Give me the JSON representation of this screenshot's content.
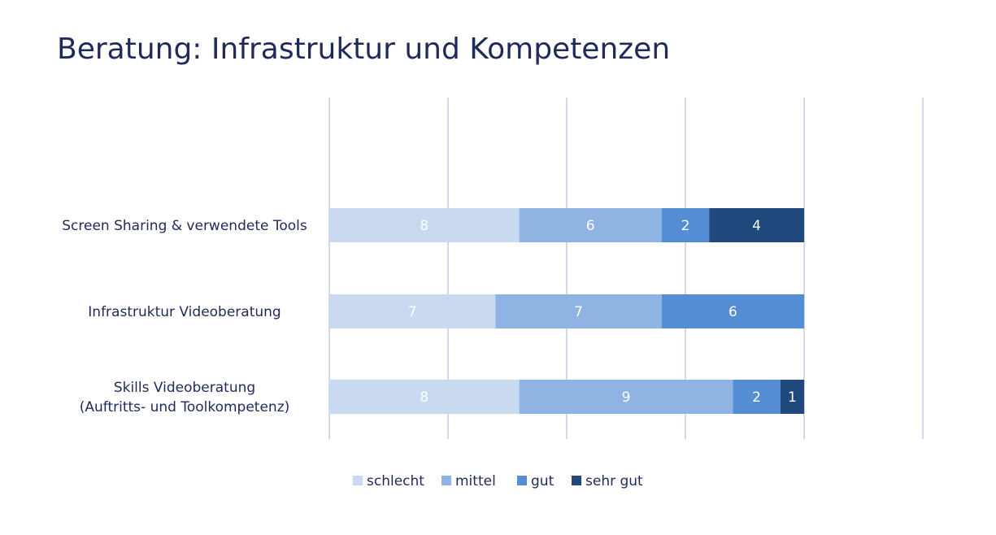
{
  "title": "Beratung: Infrastruktur und Kompetenzen",
  "chart_data": {
    "type": "bar",
    "orientation": "horizontal",
    "stacked": true,
    "categories": [
      [
        "Screen Sharing & verwendete Tools"
      ],
      [
        "Infrastruktur Videoberatung"
      ],
      [
        "Skills Videoberatung",
        "(Auftritts- und Toolkompetenz)"
      ]
    ],
    "series": [
      {
        "name": "schlecht",
        "values": [
          8,
          7,
          8
        ],
        "color": "#c9d9f0"
      },
      {
        "name": "mittel",
        "values": [
          6,
          7,
          9
        ],
        "color": "#8fb3e2"
      },
      {
        "name": "gut",
        "values": [
          2,
          6,
          2
        ],
        "color": "#558ed5"
      },
      {
        "name": "sehr gut",
        "values": [
          4,
          0,
          1
        ],
        "color": "#1f497d"
      }
    ],
    "xlim": [
      0,
      25
    ],
    "xtick_step": 5,
    "grid": true,
    "legend_position": "bottom"
  },
  "colors": {
    "title": "#1f2a5a",
    "category_label": "#1f2a5a",
    "legend_text": "#1f2a5a",
    "gridline": "#c5c8e6",
    "bar_label_light": "#ffffff"
  }
}
